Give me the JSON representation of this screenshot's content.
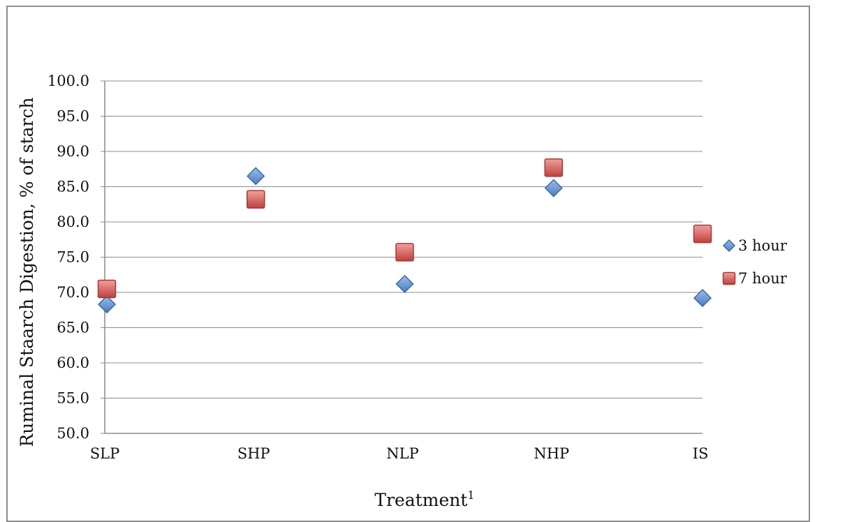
{
  "chart_data": {
    "type": "scatter",
    "categories": [
      "SLP",
      "SHP",
      "NLP",
      "NHP",
      "IS"
    ],
    "series": [
      {
        "name": "3 hour",
        "values": [
          68.3,
          86.5,
          71.2,
          84.8,
          69.2
        ],
        "marker": "diamond",
        "color": "#4f81bd"
      },
      {
        "name": "7 hour",
        "values": [
          70.5,
          83.2,
          75.7,
          87.7,
          78.3
        ],
        "marker": "square",
        "color": "#c0504d"
      }
    ],
    "title": "",
    "xlabel": "Treatment",
    "xlabel_superscript": "1",
    "ylabel": "Ruminal Staarch  Digestion, % of starch",
    "ylim": [
      50,
      100
    ],
    "ytick_step": 5,
    "ytick_labels": [
      "50.0",
      "55.0",
      "60.0",
      "65.0",
      "70.0",
      "75.0",
      "80.0",
      "85.0",
      "90.0",
      "95.0",
      "100.0"
    ],
    "grid": true,
    "legend_position": "right"
  }
}
